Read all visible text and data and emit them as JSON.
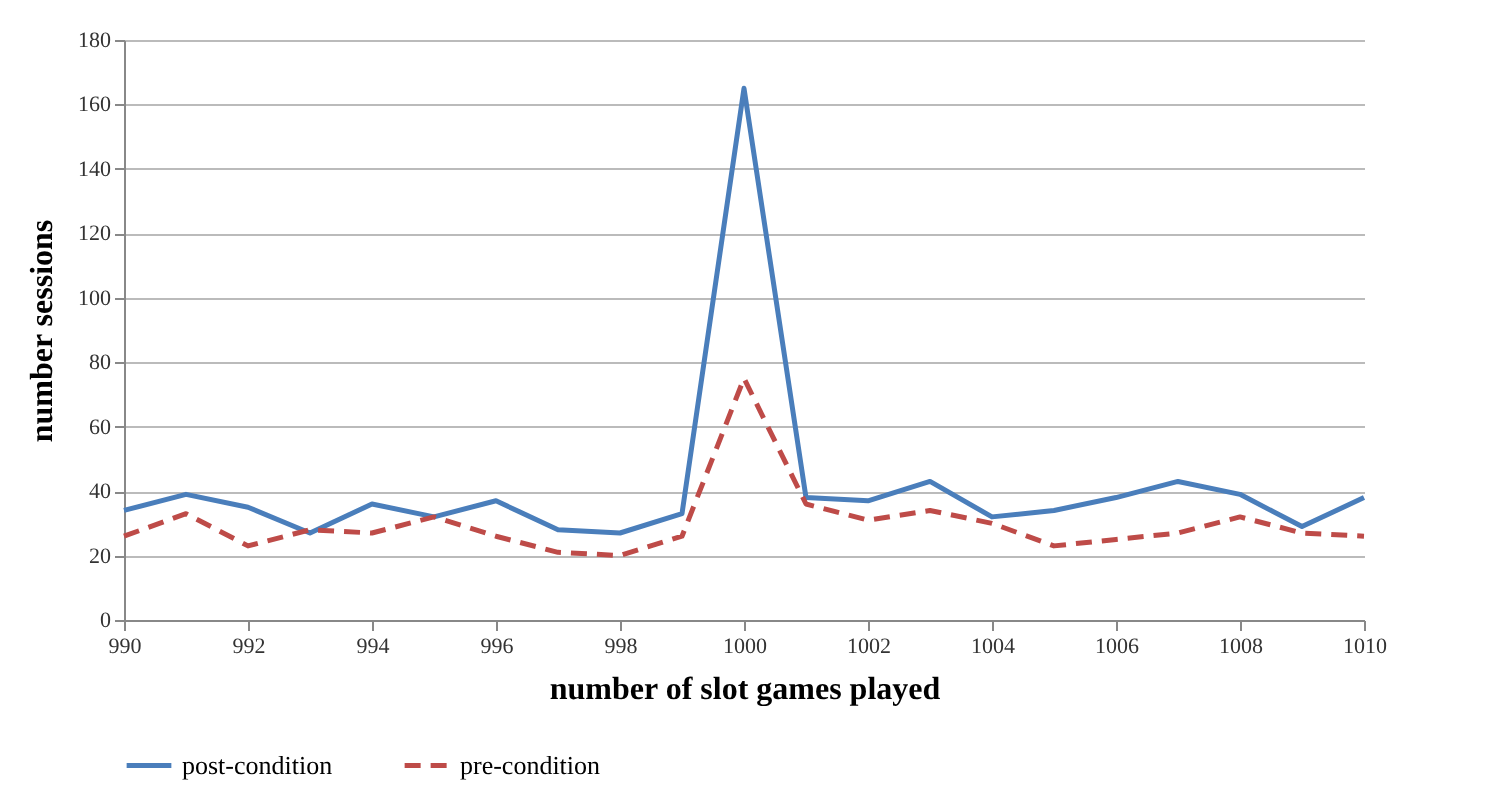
{
  "chart_data": {
    "type": "line",
    "xlabel": "number of slot games played",
    "ylabel": "number sessions",
    "x": [
      990,
      991,
      992,
      993,
      994,
      995,
      996,
      997,
      998,
      999,
      1000,
      1001,
      1002,
      1003,
      1004,
      1005,
      1006,
      1007,
      1008,
      1009,
      1010
    ],
    "series": [
      {
        "name": "post-condition",
        "color": "#4a7ebb",
        "line_style": "solid",
        "values": [
          34,
          39,
          35,
          27,
          36,
          32,
          37,
          28,
          27,
          33,
          165,
          38,
          37,
          43,
          32,
          34,
          38,
          43,
          39,
          29,
          38
        ]
      },
      {
        "name": "pre-condition",
        "color": "#be4b48",
        "line_style": "dashed",
        "values": [
          26,
          33,
          23,
          28,
          27,
          32,
          26,
          21,
          20,
          26,
          75,
          36,
          31,
          34,
          30,
          23,
          25,
          27,
          32,
          27,
          26
        ]
      }
    ],
    "xlim": [
      990,
      1010
    ],
    "xticks": [
      990,
      992,
      994,
      996,
      998,
      1000,
      1002,
      1004,
      1006,
      1008,
      1010
    ],
    "ylim": [
      0,
      180
    ],
    "yticks": [
      0,
      20,
      40,
      60,
      80,
      100,
      120,
      140,
      160,
      180
    ],
    "grid": "y",
    "legend": "bottom",
    "marker": "none"
  }
}
